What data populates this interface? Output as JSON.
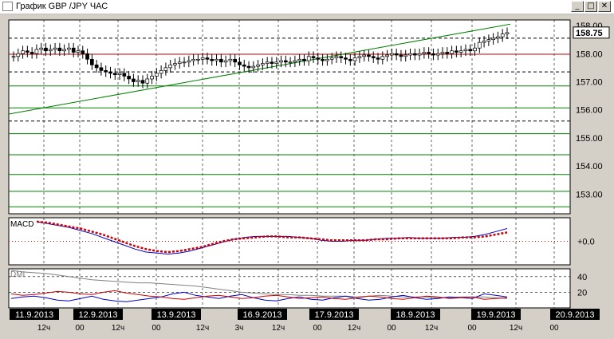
{
  "window": {
    "title": "График GBP /JPY  ЧАС",
    "buttons": {
      "minimize": "_",
      "maximize": "□",
      "close": "✕"
    }
  },
  "colors": {
    "bg": "#ffffff",
    "resistance": "#c00000",
    "support": "#008000",
    "trend": "#008000",
    "price": "#000000",
    "macd": "#0000cc",
    "signal": "#cc0000",
    "dmi_adx": "#808080",
    "dmi_plus": "#0000cc",
    "dmi_minus": "#cc0000"
  },
  "chart_data": [
    {
      "type": "candlestick",
      "title": "GBP /JPY",
      "ylim": [
        152.3,
        159.2
      ],
      "yticks": [
        "158.00",
        "157.00",
        "156.00",
        "155.00",
        "154.00",
        "153.00"
      ],
      "partial_tick": "158.00",
      "last_price": "158.75",
      "horizontal_levels": [
        {
          "value": 158.55,
          "color": "#000000",
          "style": "dash"
        },
        {
          "value": 157.98,
          "color": "#c00000",
          "style": "solid"
        },
        {
          "value": 157.35,
          "color": "#000000",
          "style": "dash"
        },
        {
          "value": 156.85,
          "color": "#008000",
          "style": "solid"
        },
        {
          "value": 156.07,
          "color": "#008000",
          "style": "solid"
        },
        {
          "value": 155.6,
          "color": "#000000",
          "style": "dash"
        },
        {
          "value": 155.15,
          "color": "#008000",
          "style": "solid"
        },
        {
          "value": 154.4,
          "color": "#008000",
          "style": "solid"
        },
        {
          "value": 153.7,
          "color": "#008000",
          "style": "solid"
        },
        {
          "value": 153.1,
          "color": "#008000",
          "style": "solid"
        },
        {
          "value": 152.55,
          "color": "#008000",
          "style": "solid"
        }
      ],
      "trendline": {
        "from": [
          0,
          155.85
        ],
        "to": [
          187,
          159.05
        ]
      },
      "close": [
        157.9,
        158.0,
        158.1,
        158.05,
        158.0,
        158.15,
        158.2,
        158.1,
        158.15,
        158.2,
        158.1,
        158.15,
        158.2,
        158.05,
        158.1,
        158.0,
        157.8,
        157.6,
        157.5,
        157.4,
        157.35,
        157.3,
        157.25,
        157.3,
        157.2,
        157.1,
        157.0,
        157.05,
        156.95,
        157.1,
        157.2,
        157.3,
        157.4,
        157.5,
        157.6,
        157.65,
        157.7,
        157.7,
        157.75,
        157.8,
        157.8,
        157.85,
        157.8,
        157.75,
        157.8,
        157.7,
        157.75,
        157.8,
        157.7,
        157.6,
        157.55,
        157.5,
        157.55,
        157.6,
        157.65,
        157.7,
        157.65,
        157.7,
        157.75,
        157.7,
        157.7,
        157.75,
        157.8,
        157.75,
        157.9,
        157.85,
        157.8,
        157.75,
        157.8,
        157.85,
        157.9,
        157.85,
        157.8,
        157.75,
        157.85,
        157.9,
        157.95,
        157.9,
        157.85,
        157.8,
        157.9,
        157.95,
        158.0,
        157.95,
        157.9,
        157.95,
        158.0,
        157.95,
        158.0,
        158.05,
        158.0,
        157.95,
        158.0,
        158.05,
        158.0,
        158.1,
        158.05,
        158.1,
        158.15,
        158.1,
        158.2,
        158.4,
        158.45,
        158.5,
        158.55,
        158.6,
        158.7,
        158.75
      ],
      "x_labels": [
        {
          "date": "11.9.2013",
          "sub": "12ч"
        },
        {
          "date": "12.9.2013",
          "sub": "00"
        },
        {
          "date": "",
          "sub": "12ч"
        },
        {
          "date": "13.9.2013",
          "sub": "00"
        },
        {
          "date": "",
          "sub": "12ч"
        },
        {
          "date": "16.9.2013",
          "sub": "3ч"
        },
        {
          "date": "",
          "sub": "12ч"
        },
        {
          "date": "17.9.2013",
          "sub": "00"
        },
        {
          "date": "",
          "sub": "12ч"
        },
        {
          "date": "18.9.2013",
          "sub": "00"
        },
        {
          "date": "",
          "sub": "12ч"
        },
        {
          "date": "19.9.2013",
          "sub": "00"
        },
        {
          "date": "",
          "sub": "12ч"
        },
        {
          "date": "20.9.2013",
          "sub": "00"
        }
      ]
    },
    {
      "type": "line",
      "title": "MACD",
      "ylim": [
        -1.2,
        1.2
      ],
      "yticks": [
        "+0.0"
      ],
      "series": [
        {
          "values": [
            1.0,
            0.9,
            0.8,
            0.7,
            0.55,
            0.4,
            0.2,
            0.0,
            -0.2,
            -0.4,
            -0.55,
            -0.6,
            -0.65,
            -0.6,
            -0.5,
            -0.35,
            -0.2,
            -0.05,
            0.1,
            0.2,
            0.25,
            0.25,
            0.25,
            0.25,
            0.2,
            0.15,
            0.05,
            0.0,
            0.0,
            0.05,
            0.05,
            0.1,
            0.15,
            0.15,
            0.2,
            0.15,
            0.15,
            0.15,
            0.2,
            0.2,
            0.25,
            0.35,
            0.5,
            0.65
          ]
        },
        {
          "values": [
            1.0,
            0.95,
            0.85,
            0.75,
            0.65,
            0.5,
            0.35,
            0.15,
            -0.05,
            -0.25,
            -0.4,
            -0.5,
            -0.55,
            -0.5,
            -0.4,
            -0.3,
            -0.15,
            0.0,
            0.1,
            0.15,
            0.2,
            0.25,
            0.25,
            0.2,
            0.2,
            0.15,
            0.1,
            0.05,
            0.05,
            0.05,
            0.05,
            0.1,
            0.1,
            0.15,
            0.15,
            0.15,
            0.15,
            0.15,
            0.15,
            0.2,
            0.2,
            0.25,
            0.35,
            0.45
          ]
        }
      ]
    },
    {
      "type": "line",
      "title": "DMI",
      "ylim": [
        0,
        50
      ],
      "yticks": [
        "40",
        "20"
      ],
      "series": [
        {
          "values": [
            48,
            46,
            45,
            44,
            42,
            40,
            38,
            36,
            35,
            34,
            33,
            32,
            32,
            31,
            30,
            29,
            28,
            26,
            24,
            22,
            20,
            19,
            18,
            17,
            17,
            16,
            16,
            15,
            15,
            15,
            14,
            15,
            16,
            15,
            14,
            14,
            14,
            13,
            13,
            14,
            14,
            14,
            13,
            12
          ]
        },
        {
          "values": [
            12,
            14,
            15,
            13,
            10,
            9,
            12,
            15,
            11,
            9,
            8,
            10,
            12,
            14,
            18,
            20,
            16,
            14,
            12,
            15,
            17,
            13,
            10,
            9,
            12,
            14,
            11,
            10,
            13,
            15,
            12,
            10,
            11,
            14,
            16,
            13,
            11,
            12,
            14,
            13,
            12,
            18,
            16,
            14
          ]
        },
        {
          "values": [
            18,
            16,
            17,
            19,
            21,
            20,
            18,
            17,
            20,
            22,
            19,
            17,
            15,
            14,
            12,
            11,
            13,
            15,
            16,
            14,
            12,
            13,
            15,
            16,
            14,
            12,
            13,
            14,
            12,
            11,
            13,
            15,
            14,
            12,
            11,
            13,
            15,
            14,
            12,
            13,
            14,
            11,
            12,
            13
          ]
        }
      ]
    }
  ]
}
